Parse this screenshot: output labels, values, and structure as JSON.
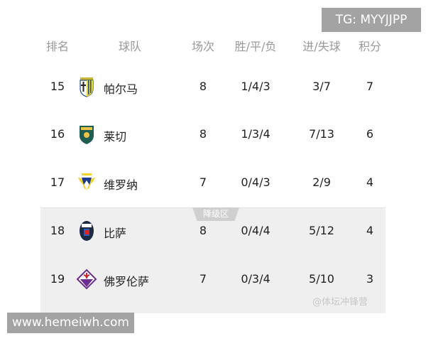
{
  "watermarks": {
    "tg": "TG: MYYJJPP",
    "site": "www.hemeiwh.com",
    "source": "@体坛冲锋营"
  },
  "headers": [
    "排名",
    "球队",
    "场次",
    "胜/平/负",
    "进/失球",
    "积分"
  ],
  "relegation_label": "降级区",
  "rows": [
    {
      "rank": "15",
      "team": "帕尔马",
      "logo": "parma-crest-icon",
      "played": "8",
      "wdl": "1/4/3",
      "goals": "3/7",
      "points": "7"
    },
    {
      "rank": "16",
      "team": "莱切",
      "logo": "lecce-crest-icon",
      "played": "8",
      "wdl": "1/3/4",
      "goals": "7/13",
      "points": "6"
    },
    {
      "rank": "17",
      "team": "维罗纳",
      "logo": "verona-crest-icon",
      "played": "7",
      "wdl": "0/4/3",
      "goals": "2/9",
      "points": "4"
    },
    {
      "rank": "18",
      "team": "比萨",
      "logo": "pisa-crest-icon",
      "played": "8",
      "wdl": "0/4/4",
      "goals": "5/12",
      "points": "4"
    },
    {
      "rank": "19",
      "team": "佛罗伦萨",
      "logo": "fiorentina-crest-icon",
      "played": "7",
      "wdl": "0/3/4",
      "goals": "5/10",
      "points": "3"
    }
  ]
}
